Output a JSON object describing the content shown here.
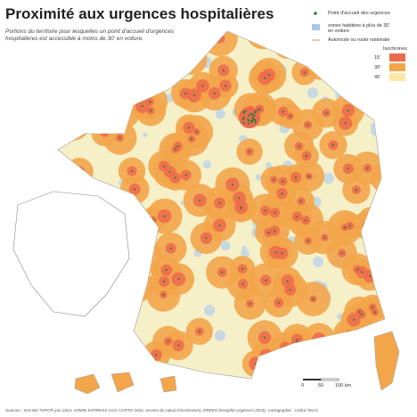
{
  "header": {
    "title": "Proximité aux urgences hospitalières",
    "subtitle": "Portions du territoire pour lesquelles un point d'accueil d'urgences hospitalières est accessible à moins de 30' en voiture."
  },
  "legend": {
    "point": "Point d'accueil des urgences",
    "zones": "zones habitées à plus de 30' en voiture",
    "roads": "Autoroute ou route nationale",
    "isochrones_title": "Isochrones",
    "isochrones": [
      "15'",
      "30'",
      "45'"
    ]
  },
  "scale": [
    "0",
    "50",
    "100 km"
  ],
  "source": "Sources : IGN BD TOPO® juin 2024, ADMIN EXPRESS COG CARTO 2024, service de calcul d'isochrones), DREES (Enquête Urgences 2023). Cartographie : Cédric Rossi"
}
